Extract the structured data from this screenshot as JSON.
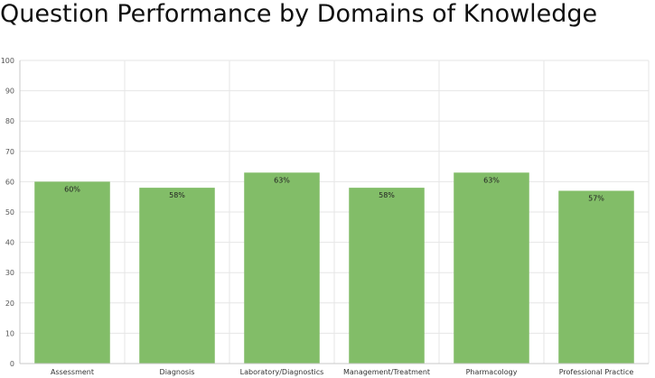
{
  "chart_data": {
    "type": "bar",
    "title": "Question Performance by Domains of Knowledge",
    "categories": [
      "Assessment",
      "Diagnosis",
      "Laboratory/Diagnostics",
      "Management/Treatment",
      "Pharmacology",
      "Professional Practice"
    ],
    "values": [
      60,
      58,
      63,
      58,
      63,
      57
    ],
    "data_labels": [
      "60%",
      "58%",
      "63%",
      "58%",
      "63%",
      "57%"
    ],
    "ylim": [
      0,
      100
    ],
    "yticks": [
      0,
      10,
      20,
      30,
      40,
      50,
      60,
      70,
      80,
      90,
      100
    ],
    "grid": true,
    "colors": {
      "bar": "#82bd68",
      "grid": "#e6e6e6",
      "axis": "#c8c8c8"
    }
  }
}
